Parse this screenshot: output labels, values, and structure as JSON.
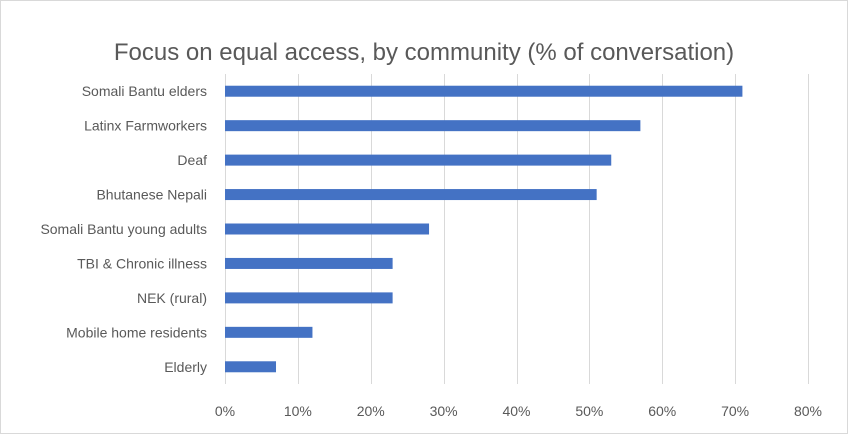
{
  "chart_data": {
    "type": "bar",
    "orientation": "horizontal",
    "title": "Focus on equal access, by community (% of conversation)",
    "xlabel": "",
    "ylabel": "",
    "categories": [
      "Somali Bantu elders",
      "Latinx Farmworkers",
      "Deaf",
      "Bhutanese Nepali",
      "Somali Bantu young adults",
      "TBI & Chronic illness",
      "NEK (rural)",
      "Mobile home residents",
      "Elderly"
    ],
    "values": [
      71,
      57,
      53,
      51,
      28,
      23,
      23,
      12,
      7
    ],
    "xlim": [
      0,
      80
    ],
    "ticks": [
      "0%",
      "10%",
      "20%",
      "30%",
      "40%",
      "50%",
      "60%",
      "70%",
      "80%"
    ],
    "tick_values": [
      0,
      10,
      20,
      30,
      40,
      50,
      60,
      70,
      80
    ],
    "grid": true,
    "legend": "none",
    "bar_color": "#4472c4",
    "grid_color": "#d9d9d9"
  }
}
